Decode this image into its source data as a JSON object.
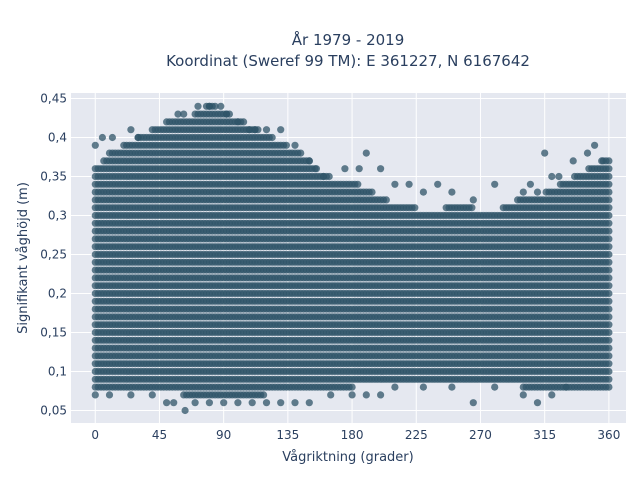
{
  "chart_data": {
    "type": "scatter",
    "title_line1": "År 1979 - 2019",
    "title_line2": "Koordinat (Sweref 99 TM): E 361227, N 6167642",
    "xlabel": "Vågriktning (grader)",
    "ylabel": "Signifikant våghöjd (m)",
    "xlim": [
      -17,
      372
    ],
    "ylim": [
      0.034,
      0.457
    ],
    "x_ticks": [
      0,
      45,
      90,
      135,
      180,
      225,
      270,
      315,
      360
    ],
    "x_tick_labels": [
      "0",
      "45",
      "90",
      "135",
      "180",
      "225",
      "270",
      "315",
      "360"
    ],
    "y_ticks": [
      0.05,
      0.1,
      0.15,
      0.2,
      0.25,
      0.3,
      0.35,
      0.4,
      0.45
    ],
    "y_tick_labels": [
      "0,05",
      "0,1",
      "0,15",
      "0,2",
      "0,25",
      "0,3",
      "0,35",
      "0,4",
      "0,45"
    ],
    "marker_color": "#2f5468",
    "plot_bg": "#e5e8f0",
    "grid": true,
    "upper_envelope": [
      [
        0,
        0.36
      ],
      [
        10,
        0.38
      ],
      [
        20,
        0.39
      ],
      [
        30,
        0.4
      ],
      [
        40,
        0.41
      ],
      [
        50,
        0.42
      ],
      [
        60,
        0.42
      ],
      [
        70,
        0.43
      ],
      [
        78,
        0.44
      ],
      [
        85,
        0.44
      ],
      [
        95,
        0.43
      ],
      [
        105,
        0.42
      ],
      [
        115,
        0.41
      ],
      [
        125,
        0.4
      ],
      [
        135,
        0.39
      ],
      [
        145,
        0.38
      ],
      [
        155,
        0.36
      ],
      [
        165,
        0.35
      ],
      [
        175,
        0.34
      ],
      [
        185,
        0.34
      ],
      [
        195,
        0.33
      ],
      [
        205,
        0.32
      ],
      [
        215,
        0.31
      ],
      [
        225,
        0.31
      ],
      [
        235,
        0.3
      ],
      [
        245,
        0.31
      ],
      [
        255,
        0.31
      ],
      [
        265,
        0.31
      ],
      [
        275,
        0.3
      ],
      [
        285,
        0.31
      ],
      [
        295,
        0.32
      ],
      [
        305,
        0.32
      ],
      [
        315,
        0.33
      ],
      [
        325,
        0.34
      ],
      [
        335,
        0.35
      ],
      [
        345,
        0.36
      ],
      [
        355,
        0.37
      ],
      [
        360,
        0.37
      ]
    ],
    "lower_envelope": [
      [
        0,
        0.08
      ],
      [
        20,
        0.08
      ],
      [
        40,
        0.075
      ],
      [
        60,
        0.07
      ],
      [
        80,
        0.065
      ],
      [
        100,
        0.065
      ],
      [
        120,
        0.07
      ],
      [
        140,
        0.075
      ],
      [
        160,
        0.08
      ],
      [
        180,
        0.08
      ],
      [
        200,
        0.085
      ],
      [
        220,
        0.085
      ],
      [
        240,
        0.09
      ],
      [
        260,
        0.09
      ],
      [
        280,
        0.085
      ],
      [
        300,
        0.08
      ],
      [
        320,
        0.08
      ],
      [
        340,
        0.08
      ],
      [
        360,
        0.08
      ]
    ],
    "sparse_points": [
      [
        0,
        0.39
      ],
      [
        5,
        0.4
      ],
      [
        12,
        0.4
      ],
      [
        25,
        0.41
      ],
      [
        30,
        0.4
      ],
      [
        58,
        0.43
      ],
      [
        62,
        0.43
      ],
      [
        72,
        0.44
      ],
      [
        80,
        0.44
      ],
      [
        88,
        0.44
      ],
      [
        92,
        0.43
      ],
      [
        100,
        0.42
      ],
      [
        108,
        0.41
      ],
      [
        112,
        0.41
      ],
      [
        120,
        0.41
      ],
      [
        130,
        0.41
      ],
      [
        140,
        0.39
      ],
      [
        150,
        0.37
      ],
      [
        155,
        0.36
      ],
      [
        160,
        0.35
      ],
      [
        175,
        0.36
      ],
      [
        185,
        0.36
      ],
      [
        190,
        0.38
      ],
      [
        200,
        0.36
      ],
      [
        210,
        0.34
      ],
      [
        220,
        0.34
      ],
      [
        230,
        0.33
      ],
      [
        240,
        0.34
      ],
      [
        250,
        0.33
      ],
      [
        265,
        0.32
      ],
      [
        280,
        0.34
      ],
      [
        300,
        0.33
      ],
      [
        305,
        0.34
      ],
      [
        310,
        0.33
      ],
      [
        315,
        0.38
      ],
      [
        320,
        0.35
      ],
      [
        325,
        0.35
      ],
      [
        335,
        0.37
      ],
      [
        345,
        0.38
      ],
      [
        350,
        0.39
      ],
      [
        355,
        0.37
      ],
      [
        0,
        0.07
      ],
      [
        10,
        0.07
      ],
      [
        25,
        0.07
      ],
      [
        40,
        0.07
      ],
      [
        50,
        0.06
      ],
      [
        55,
        0.06
      ],
      [
        63,
        0.05
      ],
      [
        70,
        0.06
      ],
      [
        80,
        0.06
      ],
      [
        90,
        0.06
      ],
      [
        100,
        0.06
      ],
      [
        110,
        0.06
      ],
      [
        120,
        0.06
      ],
      [
        130,
        0.06
      ],
      [
        140,
        0.06
      ],
      [
        150,
        0.06
      ],
      [
        165,
        0.07
      ],
      [
        180,
        0.07
      ],
      [
        190,
        0.07
      ],
      [
        200,
        0.07
      ],
      [
        210,
        0.08
      ],
      [
        230,
        0.08
      ],
      [
        250,
        0.08
      ],
      [
        265,
        0.06
      ],
      [
        280,
        0.08
      ],
      [
        300,
        0.07
      ],
      [
        310,
        0.06
      ],
      [
        320,
        0.07
      ],
      [
        330,
        0.08
      ]
    ]
  }
}
